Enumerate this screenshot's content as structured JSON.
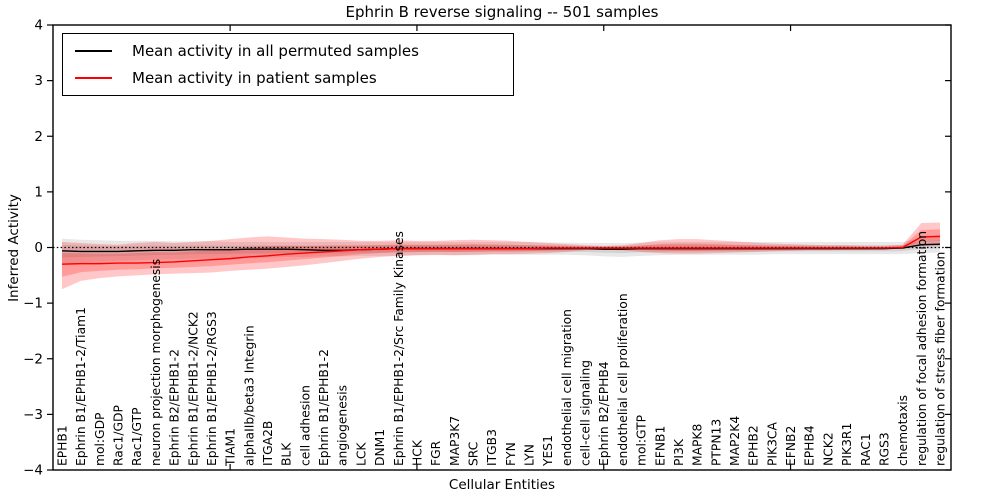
{
  "chart_data": {
    "type": "line",
    "title": "Ephrin B reverse signaling -- 501 samples",
    "xlabel": "Cellular Entities",
    "ylabel": "Inferred Activity",
    "ylim": [
      -4,
      4
    ],
    "yticks": [
      -4,
      -3,
      -2,
      -1,
      0,
      1,
      2,
      3,
      4
    ],
    "ytick_labels": [
      "−4",
      "−3",
      "−2",
      "−1",
      "0",
      "1",
      "2",
      "3",
      "4"
    ],
    "major_tick_indices": [
      9,
      19,
      29,
      39
    ],
    "grid": false,
    "zero_line": true,
    "legend_position": "upper left",
    "categories": [
      "EPHB1",
      "Ephrin B1/EPHB1-2/Tiam1",
      "mol:GDP",
      "Rac1/GDP",
      "Rac1/GTP",
      "neuron projection morphogenesis",
      "Ephrin B2/EPHB1-2",
      "Ephrin B1/EPHB1-2/NCK2",
      "Ephrin B1/EPHB1-2/RGS3",
      "TIAM1",
      "alphaIIb/beta3 Integrin",
      "ITGA2B",
      "BLK",
      "cell adhesion",
      "Ephrin B1/EPHB1-2",
      "angiogenesis",
      "LCK",
      "DNM1",
      "Ephrin B1/EPHB1-2/Src Family Kinases",
      "HCK",
      "FGR",
      "MAP3K7",
      "SRC",
      "ITGB3",
      "FYN",
      "LYN",
      "YES1",
      "endothelial cell migration",
      "cell-cell signaling",
      "Ephrin B2/EPHB4",
      "endothelial cell proliferation",
      "mol:GTP",
      "EFNB1",
      "PI3K",
      "MAPK8",
      "PTPN13",
      "MAP2K4",
      "EPHB2",
      "PIK3CA",
      "EFNB2",
      "EPHB4",
      "NCK2",
      "PIK3R1",
      "RAC1",
      "RGS3",
      "chemotaxis",
      "regulation of focal adhesion formation",
      "regulation of stress fiber formation"
    ],
    "series": [
      {
        "name": "Mean activity in all permuted samples",
        "color": "#000000",
        "band_color": "#000000",
        "band_opacity": 0.09,
        "values": [
          -0.06,
          -0.07,
          -0.07,
          -0.07,
          -0.06,
          -0.05,
          -0.05,
          -0.04,
          -0.04,
          -0.04,
          -0.03,
          -0.03,
          -0.03,
          -0.04,
          -0.05,
          -0.05,
          -0.04,
          -0.03,
          -0.02,
          -0.02,
          -0.02,
          -0.02,
          -0.02,
          -0.02,
          -0.02,
          -0.02,
          -0.02,
          -0.02,
          -0.02,
          -0.03,
          -0.03,
          -0.02,
          -0.02,
          -0.02,
          -0.02,
          -0.02,
          -0.02,
          -0.02,
          -0.02,
          -0.02,
          -0.02,
          -0.02,
          -0.02,
          -0.02,
          -0.02,
          -0.01,
          0.05,
          0.06
        ],
        "band_upper": [
          0.16,
          0.14,
          0.13,
          0.12,
          0.12,
          0.12,
          0.11,
          0.11,
          0.11,
          0.1,
          0.1,
          0.1,
          0.1,
          0.1,
          0.1,
          0.1,
          0.1,
          0.1,
          0.1,
          0.1,
          0.1,
          0.1,
          0.1,
          0.1,
          0.1,
          0.1,
          0.09,
          0.09,
          0.08,
          0.08,
          0.08,
          0.09,
          0.1,
          0.1,
          0.1,
          0.1,
          0.1,
          0.1,
          0.1,
          0.1,
          0.1,
          0.1,
          0.1,
          0.1,
          0.1,
          0.1,
          0.17,
          0.19
        ],
        "band_lower": [
          -0.3,
          -0.27,
          -0.25,
          -0.24,
          -0.23,
          -0.22,
          -0.21,
          -0.2,
          -0.2,
          -0.19,
          -0.18,
          -0.18,
          -0.17,
          -0.17,
          -0.16,
          -0.16,
          -0.15,
          -0.15,
          -0.15,
          -0.14,
          -0.14,
          -0.14,
          -0.14,
          -0.13,
          -0.13,
          -0.13,
          -0.13,
          -0.13,
          -0.14,
          -0.16,
          -0.17,
          -0.15,
          -0.14,
          -0.13,
          -0.13,
          -0.13,
          -0.13,
          -0.13,
          -0.12,
          -0.12,
          -0.12,
          -0.12,
          -0.12,
          -0.12,
          -0.12,
          -0.12,
          -0.1,
          -0.09
        ]
      },
      {
        "name": "Mean activity in patient samples",
        "color": "#ff0000",
        "band_color": "#ff0000",
        "band_opacity": 0.22,
        "values": [
          -0.3,
          -0.29,
          -0.29,
          -0.28,
          -0.28,
          -0.27,
          -0.26,
          -0.24,
          -0.22,
          -0.2,
          -0.17,
          -0.15,
          -0.12,
          -0.1,
          -0.08,
          -0.06,
          -0.04,
          -0.03,
          -0.02,
          -0.02,
          -0.02,
          -0.02,
          -0.02,
          -0.02,
          -0.02,
          -0.02,
          -0.01,
          -0.01,
          -0.01,
          -0.01,
          -0.01,
          -0.01,
          -0.01,
          -0.01,
          -0.01,
          -0.01,
          -0.01,
          -0.01,
          -0.01,
          -0.01,
          -0.01,
          -0.01,
          -0.01,
          -0.01,
          -0.01,
          0.0,
          0.19,
          0.2
        ],
        "band_upper": [
          0.1,
          0.08,
          0.06,
          0.05,
          0.08,
          0.1,
          0.08,
          0.1,
          0.12,
          0.15,
          0.18,
          0.2,
          0.18,
          0.16,
          0.15,
          0.14,
          0.12,
          0.12,
          0.13,
          0.12,
          0.12,
          0.13,
          0.14,
          0.13,
          0.12,
          0.1,
          0.08,
          0.06,
          0.04,
          0.03,
          0.04,
          0.08,
          0.13,
          0.15,
          0.15,
          0.13,
          0.11,
          0.09,
          0.07,
          0.06,
          0.05,
          0.04,
          0.04,
          0.03,
          0.03,
          0.05,
          0.44,
          0.45
        ],
        "band_lower": [
          -0.75,
          -0.6,
          -0.55,
          -0.52,
          -0.5,
          -0.48,
          -0.47,
          -0.46,
          -0.45,
          -0.42,
          -0.4,
          -0.38,
          -0.35,
          -0.32,
          -0.28,
          -0.24,
          -0.2,
          -0.17,
          -0.15,
          -0.14,
          -0.13,
          -0.14,
          -0.13,
          -0.12,
          -0.12,
          -0.11,
          -0.1,
          -0.08,
          -0.05,
          -0.04,
          -0.05,
          -0.08,
          -0.1,
          -0.11,
          -0.11,
          -0.1,
          -0.09,
          -0.08,
          -0.07,
          -0.06,
          -0.05,
          -0.05,
          -0.04,
          -0.04,
          -0.03,
          -0.02,
          0.02,
          0.03
        ]
      }
    ]
  }
}
